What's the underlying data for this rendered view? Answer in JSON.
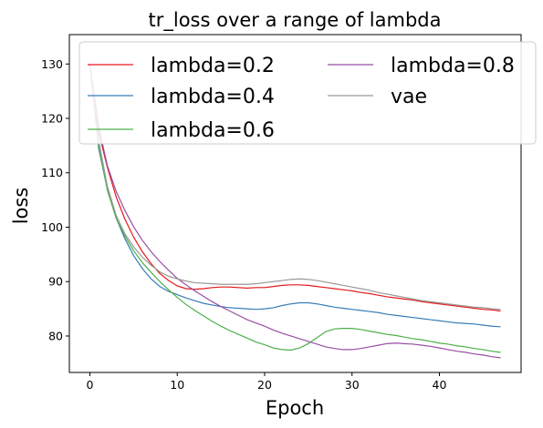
{
  "chart_data": {
    "type": "line",
    "title": "tr_loss over a range of lambda",
    "xlabel": "Epoch",
    "ylabel": "loss",
    "xlim": [
      -2.35,
      49.35
    ],
    "ylim": [
      73.3,
      135.4
    ],
    "xticks": [
      0,
      10,
      20,
      30,
      40
    ],
    "yticks": [
      80,
      90,
      100,
      110,
      120,
      130
    ],
    "grid": false,
    "legend_position": "top",
    "legend_columns": 2,
    "x": [
      0,
      1,
      2,
      3,
      4,
      5,
      6,
      7,
      8,
      9,
      10,
      11,
      12,
      13,
      14,
      15,
      16,
      17,
      18,
      19,
      20,
      21,
      22,
      23,
      24,
      25,
      26,
      27,
      28,
      29,
      30,
      31,
      32,
      33,
      34,
      35,
      36,
      37,
      38,
      39,
      40,
      41,
      42,
      43,
      44,
      45,
      46,
      47
    ],
    "series": [
      {
        "name": "lambda=0.2",
        "color": "#e41a1c",
        "values": [
          130.0,
          117.5,
          111.0,
          105.6,
          101.5,
          98.2,
          95.5,
          93.3,
          91.5,
          90.2,
          89.2,
          88.7,
          88.6,
          88.7,
          88.9,
          89.0,
          89.0,
          88.9,
          88.8,
          88.9,
          88.9,
          89.1,
          89.3,
          89.4,
          89.4,
          89.3,
          89.1,
          88.9,
          88.7,
          88.5,
          88.3,
          88.0,
          87.8,
          87.5,
          87.2,
          87.0,
          86.8,
          86.6,
          86.3,
          86.1,
          85.9,
          85.7,
          85.5,
          85.3,
          85.1,
          84.9,
          84.8,
          84.6
        ]
      },
      {
        "name": "lambda=0.4",
        "color": "#377eb8",
        "values": [
          130.0,
          114.5,
          107.0,
          101.7,
          97.9,
          94.8,
          92.4,
          90.5,
          89.1,
          88.2,
          87.6,
          87.0,
          86.5,
          86.0,
          85.7,
          85.4,
          85.2,
          85.1,
          85.0,
          84.9,
          85.0,
          85.2,
          85.6,
          85.9,
          86.1,
          86.1,
          85.9,
          85.6,
          85.3,
          85.1,
          84.9,
          84.7,
          84.5,
          84.3,
          84.0,
          83.8,
          83.6,
          83.4,
          83.2,
          83.0,
          82.8,
          82.6,
          82.4,
          82.3,
          82.2,
          82.0,
          81.8,
          81.7
        ]
      },
      {
        "name": "lambda=0.6",
        "color": "#4daf4a",
        "values": [
          130.0,
          115.0,
          106.8,
          101.7,
          98.4,
          95.7,
          93.5,
          91.7,
          90.0,
          88.5,
          87.1,
          85.8,
          84.7,
          83.7,
          82.7,
          81.8,
          81.0,
          80.3,
          79.6,
          78.9,
          78.4,
          77.8,
          77.5,
          77.4,
          77.8,
          78.6,
          79.7,
          80.8,
          81.3,
          81.4,
          81.4,
          81.2,
          80.9,
          80.6,
          80.3,
          80.1,
          79.8,
          79.5,
          79.3,
          79.0,
          78.7,
          78.5,
          78.2,
          78.0,
          77.7,
          77.5,
          77.2,
          77.0
        ]
      },
      {
        "name": "lambda=0.8",
        "color": "#984ea3",
        "values": [
          130.0,
          118.5,
          111.3,
          106.6,
          103.1,
          100.1,
          97.6,
          95.5,
          93.7,
          92.1,
          90.6,
          89.4,
          88.3,
          87.3,
          86.3,
          85.4,
          84.6,
          83.8,
          83.0,
          82.4,
          81.8,
          81.1,
          80.5,
          80.0,
          79.5,
          79.0,
          78.5,
          78.0,
          77.7,
          77.5,
          77.5,
          77.7,
          78.0,
          78.3,
          78.6,
          78.7,
          78.6,
          78.5,
          78.3,
          78.1,
          77.8,
          77.5,
          77.2,
          77.0,
          76.7,
          76.5,
          76.2,
          76.0
        ]
      },
      {
        "name": "vae",
        "color": "#999999",
        "values": [
          130.0,
          116.0,
          107.5,
          102.2,
          98.8,
          96.4,
          94.5,
          93.0,
          91.8,
          91.0,
          90.5,
          90.1,
          89.8,
          89.7,
          89.6,
          89.5,
          89.5,
          89.5,
          89.5,
          89.6,
          89.8,
          90.0,
          90.2,
          90.4,
          90.5,
          90.4,
          90.2,
          89.9,
          89.6,
          89.3,
          89.0,
          88.7,
          88.4,
          88.0,
          87.7,
          87.4,
          87.1,
          86.8,
          86.5,
          86.3,
          86.1,
          85.9,
          85.7,
          85.5,
          85.3,
          85.2,
          85.0,
          84.9
        ]
      }
    ]
  }
}
